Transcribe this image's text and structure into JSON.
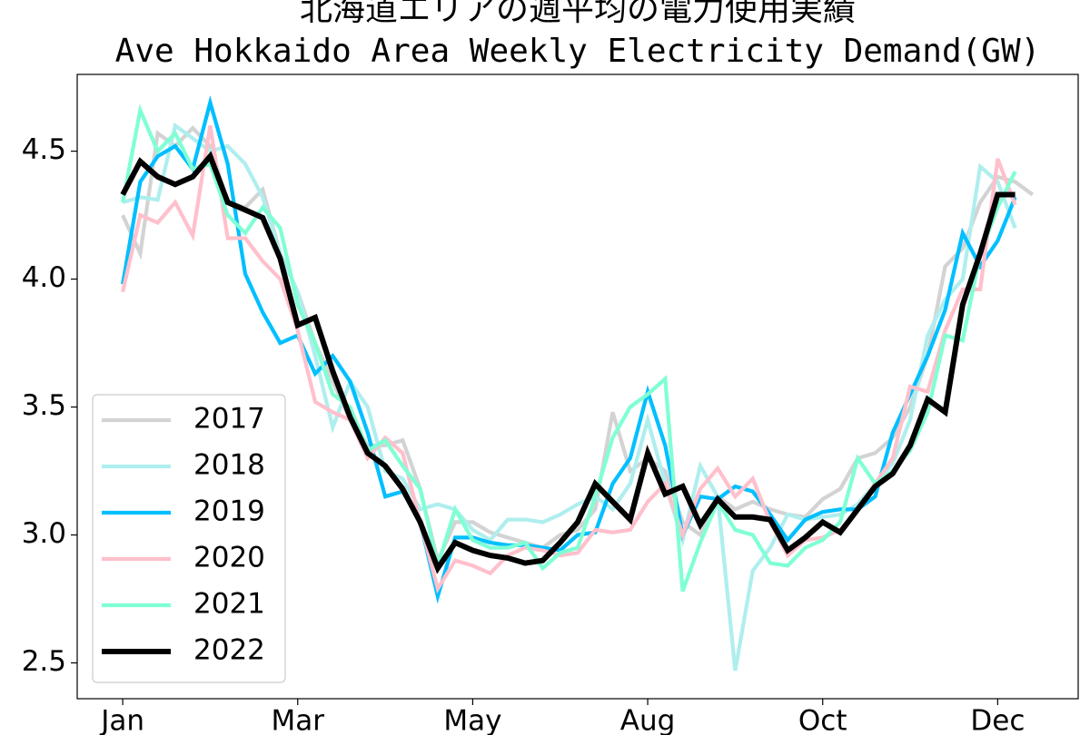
{
  "chart_data": {
    "type": "line",
    "title": "北海道エリアの週平均の電力使用実績",
    "subtitle": "Ave Hokkaido Area Weekly Electricity Demand(GW)",
    "x": [
      0,
      1,
      2,
      3,
      4,
      5,
      6,
      7,
      8,
      9,
      10,
      11,
      12,
      13,
      14,
      15,
      16,
      17,
      18,
      19,
      20,
      21,
      22,
      23,
      24,
      25,
      26,
      27,
      28,
      29,
      30,
      31,
      32,
      33,
      34,
      35,
      36,
      37,
      38,
      39,
      40,
      41,
      42,
      43,
      44,
      45,
      46,
      47,
      48,
      49,
      50,
      51,
      52
    ],
    "xlim": [
      -2.6,
      54.6
    ],
    "xticks": [
      {
        "value": 0,
        "label": "Jan"
      },
      {
        "value": 10,
        "label": "Mar"
      },
      {
        "value": 20,
        "label": "May"
      },
      {
        "value": 30,
        "label": "Aug"
      },
      {
        "value": 40,
        "label": "Oct"
      },
      {
        "value": 50,
        "label": "Dec"
      }
    ],
    "ylim": [
      2.36,
      4.8
    ],
    "yticks": [
      2.5,
      {
        "value": 3,
        "label": "3.0"
      },
      3.5,
      {
        "value": 4,
        "label": "4.0"
      },
      4.5
    ],
    "legend": "lower left",
    "series": [
      {
        "name": "2017",
        "color": "#d3d3d3",
        "values": [
          4.25,
          4.1,
          4.57,
          4.52,
          4.59,
          4.52,
          4.3,
          4.28,
          4.35,
          4.1,
          3.95,
          3.75,
          3.6,
          3.45,
          3.35,
          3.35,
          3.37,
          3.18,
          2.9,
          3.05,
          3.05,
          3.01,
          2.99,
          2.97,
          2.95,
          3.0,
          3.02,
          3.1,
          3.48,
          3.25,
          3.3,
          3.25,
          3.05,
          3.0,
          3.15,
          3.1,
          3.13,
          3.1,
          3.08,
          3.07,
          3.14,
          3.18,
          3.3,
          3.32,
          3.38,
          3.5,
          3.7,
          4.05,
          4.12,
          4.3,
          4.4,
          4.38,
          4.33
        ]
      },
      {
        "name": "2018",
        "color": "#afeeee",
        "values": [
          4.3,
          4.32,
          4.31,
          4.6,
          4.55,
          4.5,
          4.52,
          4.45,
          4.32,
          4.1,
          3.95,
          3.7,
          3.42,
          3.6,
          3.5,
          3.25,
          3.22,
          3.1,
          3.12,
          3.1,
          3.02,
          2.98,
          3.06,
          3.06,
          3.05,
          3.08,
          3.12,
          3.15,
          3.1,
          3.2,
          3.45,
          3.2,
          2.98,
          3.27,
          3.15,
          2.47,
          2.86,
          2.95,
          3.08,
          3.06,
          3.07,
          3.08,
          3.12,
          3.2,
          3.28,
          3.45,
          3.78,
          3.92,
          4.0,
          4.44,
          4.38,
          4.2,
          null
        ]
      },
      {
        "name": "2019",
        "color": "#00bfff",
        "values": [
          3.98,
          4.38,
          4.48,
          4.52,
          4.43,
          4.69,
          4.45,
          4.02,
          3.87,
          3.75,
          3.78,
          3.63,
          3.7,
          3.6,
          3.4,
          3.15,
          3.17,
          3.05,
          2.76,
          2.99,
          2.99,
          2.97,
          2.96,
          2.96,
          2.95,
          2.94,
          3.0,
          3.01,
          3.2,
          3.3,
          3.56,
          3.35,
          3.0,
          3.15,
          3.14,
          3.19,
          3.17,
          3.08,
          2.98,
          3.06,
          3.09,
          3.1,
          3.1,
          3.15,
          3.4,
          3.55,
          3.7,
          3.88,
          4.18,
          4.05,
          4.15,
          4.32,
          null
        ]
      },
      {
        "name": "2020",
        "color": "#ffc0cb",
        "values": [
          3.95,
          4.25,
          4.22,
          4.3,
          4.17,
          4.6,
          4.16,
          4.16,
          4.07,
          4.0,
          3.8,
          3.52,
          3.48,
          3.45,
          3.3,
          3.38,
          3.32,
          3.05,
          2.79,
          2.9,
          2.88,
          2.85,
          2.92,
          2.95,
          2.94,
          2.92,
          2.93,
          3.02,
          3.01,
          3.02,
          3.13,
          3.2,
          3.0,
          3.18,
          3.26,
          3.15,
          3.22,
          3.05,
          2.92,
          2.98,
          2.99,
          3.02,
          3.1,
          3.2,
          3.3,
          3.58,
          3.56,
          3.8,
          3.96,
          3.96,
          4.47,
          4.29,
          null
        ]
      },
      {
        "name": "2021",
        "color": "#7fffd4",
        "values": [
          4.3,
          4.66,
          4.5,
          4.57,
          4.43,
          4.45,
          4.25,
          4.18,
          4.28,
          4.2,
          3.9,
          3.75,
          3.55,
          3.5,
          3.33,
          3.37,
          3.27,
          3.18,
          2.88,
          3.1,
          2.98,
          2.95,
          2.95,
          2.97,
          2.87,
          2.93,
          2.95,
          3.15,
          3.38,
          3.5,
          3.55,
          3.61,
          2.78,
          2.97,
          3.13,
          3.02,
          3.0,
          2.89,
          2.88,
          2.95,
          2.98,
          3.05,
          3.3,
          3.2,
          3.25,
          3.33,
          3.48,
          3.78,
          3.76,
          4.1,
          4.28,
          4.42,
          null
        ]
      },
      {
        "name": "2022",
        "color": "#000000",
        "values": [
          4.33,
          4.46,
          4.4,
          4.37,
          4.4,
          4.48,
          4.3,
          4.27,
          4.24,
          4.08,
          3.82,
          3.85,
          3.64,
          3.46,
          3.32,
          3.27,
          3.18,
          3.05,
          2.87,
          2.97,
          2.94,
          2.92,
          2.91,
          2.89,
          2.9,
          2.97,
          3.05,
          3.2,
          3.13,
          3.06,
          3.32,
          3.16,
          3.19,
          3.04,
          3.14,
          3.07,
          3.07,
          3.06,
          2.94,
          2.99,
          3.05,
          3.01,
          3.1,
          3.19,
          3.24,
          3.35,
          3.53,
          3.48,
          3.9,
          4.1,
          4.33,
          4.33,
          null
        ]
      }
    ]
  }
}
